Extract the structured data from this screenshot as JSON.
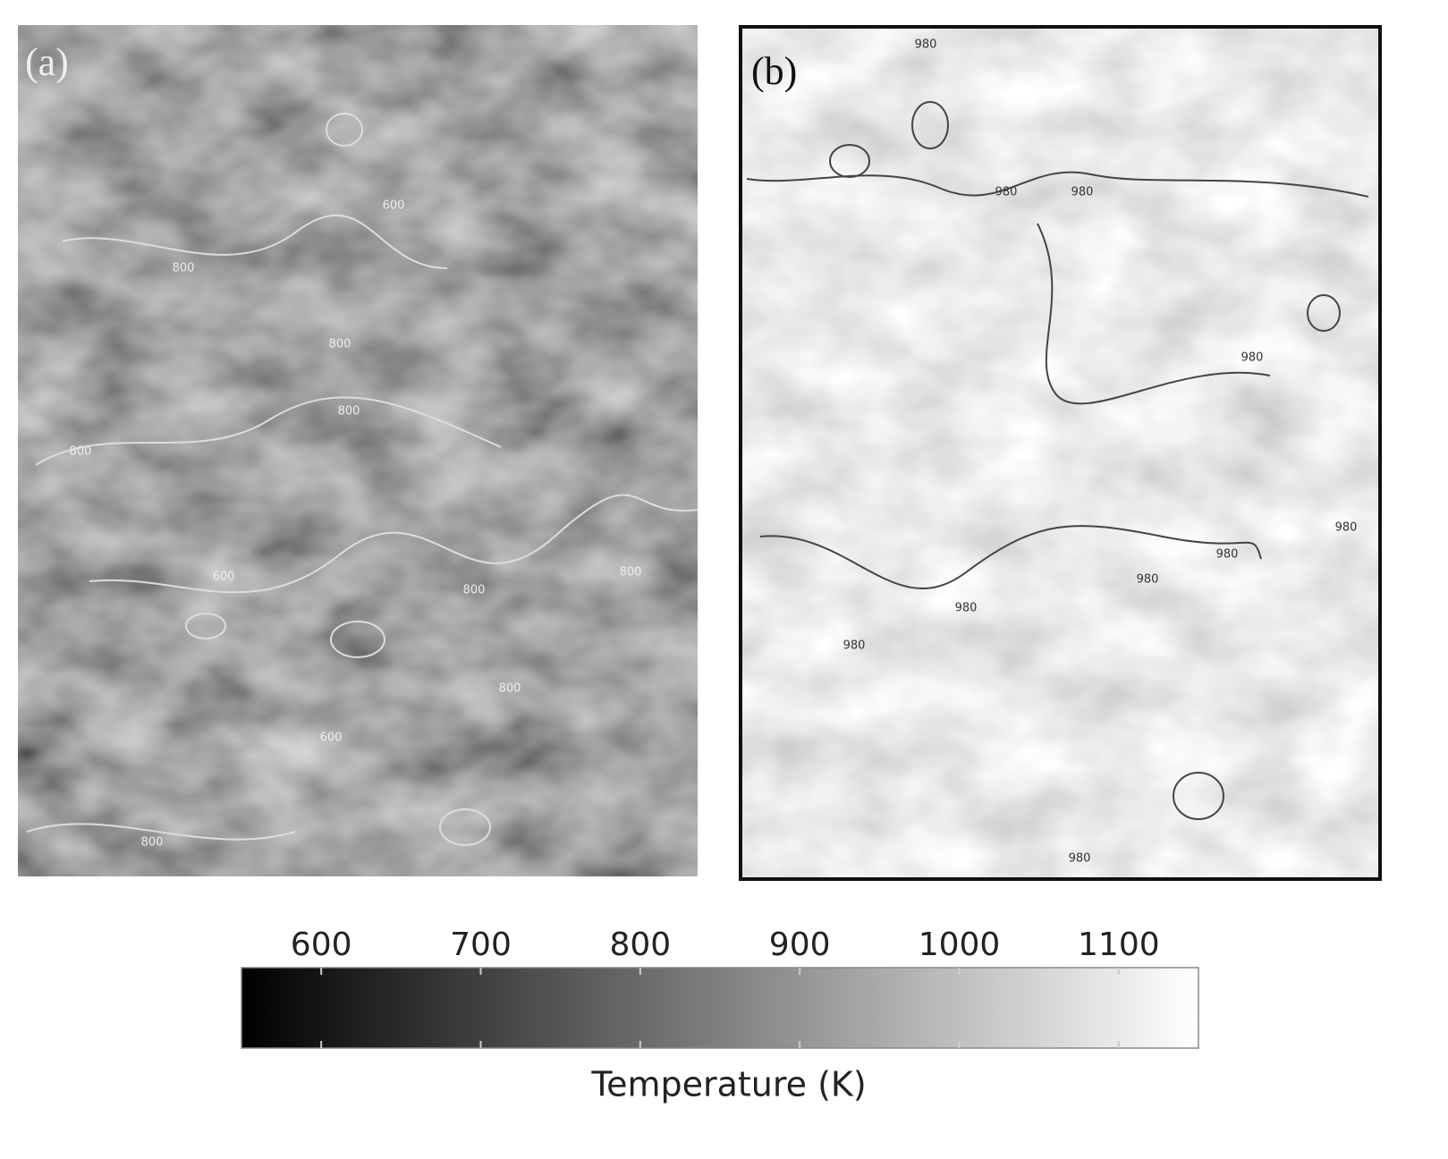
{
  "panels": [
    {
      "label": "(a)",
      "contour_labels": [
        800,
        800,
        800,
        800,
        600,
        600,
        800,
        800,
        600,
        800,
        800
      ]
    },
    {
      "label": "(b)",
      "contour_labels": [
        980,
        980,
        980,
        980,
        980,
        980,
        980,
        980,
        980,
        980
      ]
    }
  ],
  "colorbar": {
    "label": "Temperature (K)",
    "clim": [
      550,
      1150
    ],
    "ticks": [
      600,
      700,
      800,
      900,
      1000,
      1100
    ],
    "colormap": "gray"
  }
}
